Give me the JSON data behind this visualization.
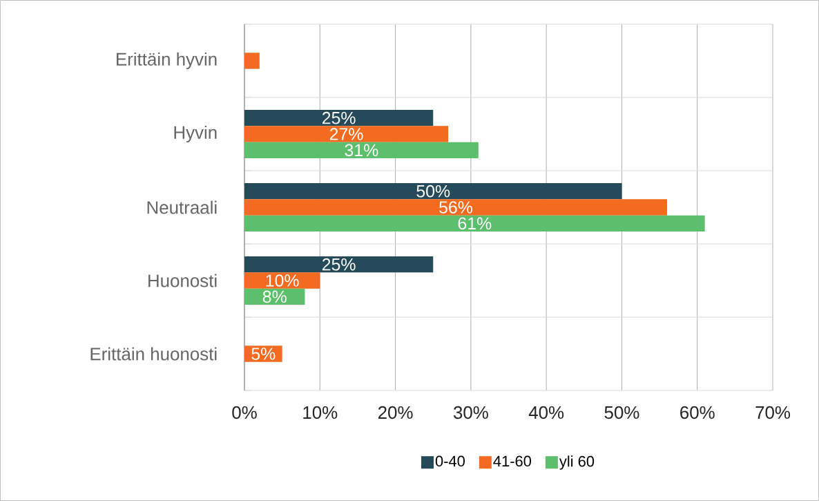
{
  "chart_data": {
    "type": "bar",
    "orientation": "horizontal",
    "categories": [
      "Erittäin hyvin",
      "Hyvin",
      "Neutraali",
      "Huonosti",
      "Erittäin huonosti"
    ],
    "series": [
      {
        "name": "0-40",
        "color": "#254b5a",
        "values": [
          0,
          25,
          50,
          25,
          0
        ],
        "value_labels": [
          null,
          "25%",
          "50%",
          "25%",
          null
        ]
      },
      {
        "name": "41-60",
        "color": "#f26b21",
        "values": [
          2,
          27,
          56,
          10,
          5
        ],
        "value_labels": [
          null,
          "27%",
          "56%",
          "10%",
          "5%"
        ]
      },
      {
        "name": "yli 60",
        "color": "#5bbf6b",
        "values": [
          0,
          31,
          61,
          8,
          0
        ],
        "value_labels": [
          null,
          "31%",
          "61%",
          "8%",
          null
        ]
      }
    ],
    "xlim": [
      0,
      70
    ],
    "xticks": [
      {
        "value": 0,
        "label": "0%"
      },
      {
        "value": 10,
        "label": "10%"
      },
      {
        "value": 20,
        "label": "20%"
      },
      {
        "value": 30,
        "label": "30%"
      },
      {
        "value": 40,
        "label": "40%"
      },
      {
        "value": 50,
        "label": "50%"
      },
      {
        "value": 60,
        "label": "60%"
      },
      {
        "value": 70,
        "label": "70%"
      }
    ],
    "grid": true,
    "legend": "bottom"
  }
}
